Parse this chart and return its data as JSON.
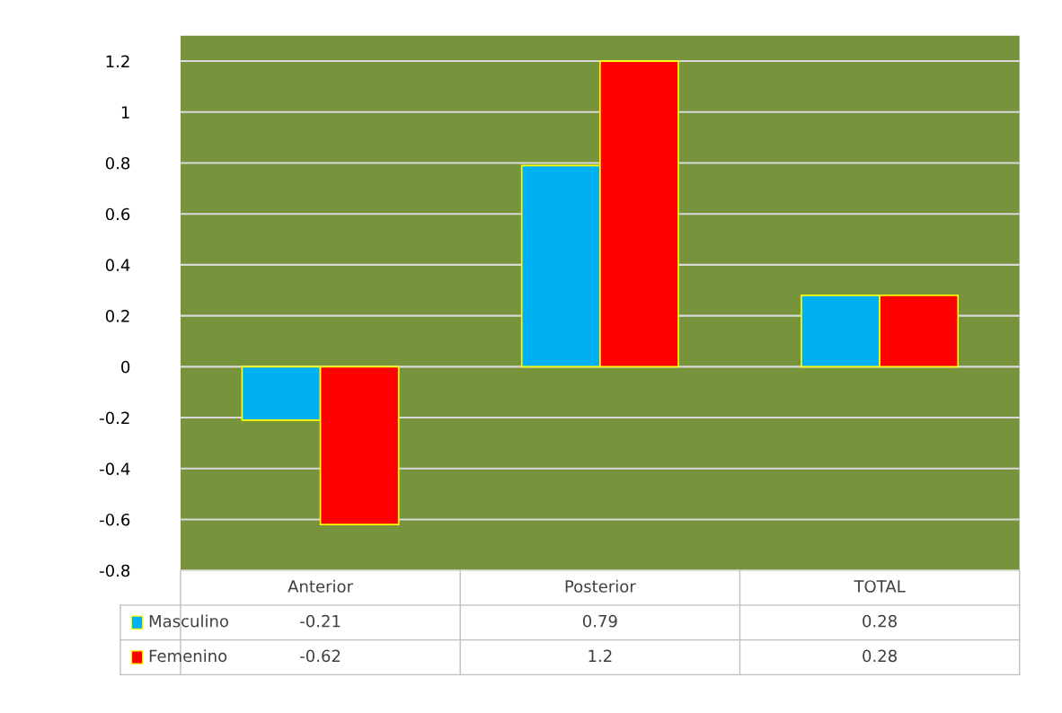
{
  "chart_data": {
    "type": "bar",
    "categories": [
      "Anterior",
      "Posterior",
      "TOTAL"
    ],
    "series": [
      {
        "name": "Masculino",
        "color": "#00b0f0",
        "values": [
          -0.21,
          0.79,
          0.28
        ]
      },
      {
        "name": "Femenino",
        "color": "#ff0000",
        "values": [
          -0.62,
          1.2,
          0.28
        ]
      }
    ],
    "ylim": [
      -0.8,
      1.3
    ],
    "yticks": [
      -0.8,
      -0.6,
      -0.4,
      -0.2,
      0,
      0.2,
      0.4,
      0.6,
      0.8,
      1,
      1.2
    ],
    "grid": "y",
    "legend": "bottom",
    "data_labels": true
  }
}
